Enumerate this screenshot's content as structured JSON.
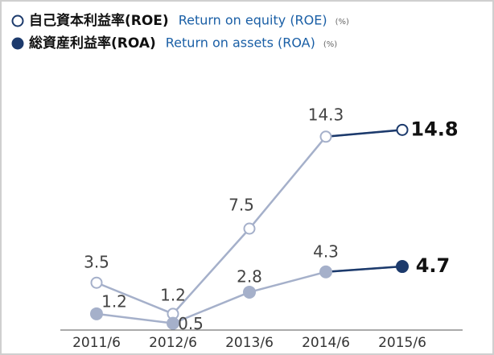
{
  "chart_data": {
    "type": "line",
    "categories": [
      "2011/6",
      "2012/6",
      "2013/6",
      "2014/6",
      "2015/6"
    ],
    "unit": "(%)",
    "series": [
      {
        "name": "自己資本利益率(ROE)",
        "name_en": "Return on equity (ROE)",
        "marker": "open",
        "color": "#a5b0ca",
        "highlight_color": "#1c3a6c",
        "values": [
          3.5,
          1.2,
          7.5,
          14.3,
          14.8
        ]
      },
      {
        "name": "総資産利益率(ROA)",
        "name_en": "Return on assets (ROA)",
        "marker": "filled",
        "color": "#a5b0ca",
        "highlight_color": "#1c3a6c",
        "values": [
          1.2,
          0.5,
          2.8,
          4.3,
          4.7
        ]
      }
    ]
  }
}
